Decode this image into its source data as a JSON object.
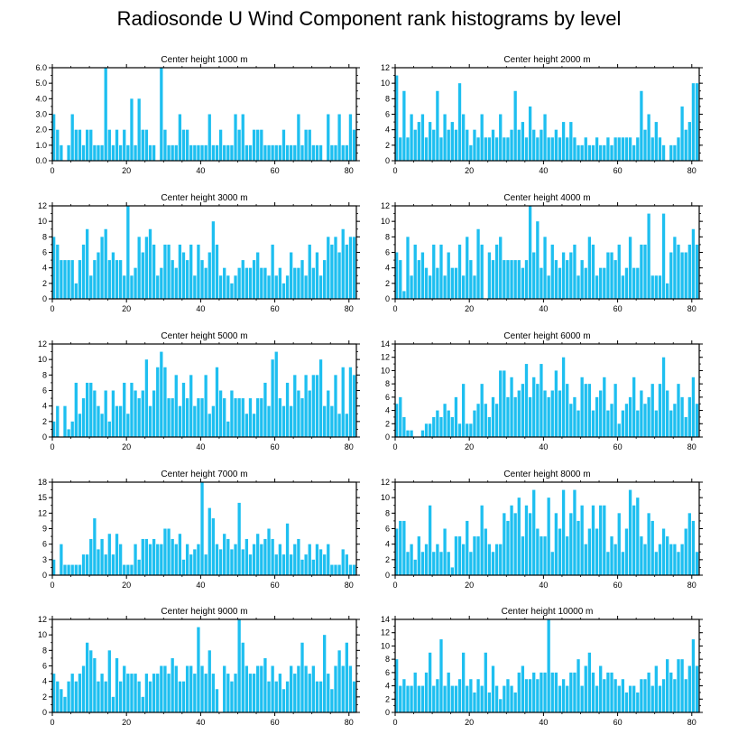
{
  "title": "Radiosonde U Wind Component rank histograms by level",
  "bar_color": "#1ebff0",
  "chart_data": [
    {
      "type": "bar",
      "title": "Center height 1000 m",
      "xlim": [
        0,
        82
      ],
      "ylim": [
        0,
        6
      ],
      "yticks": [
        0,
        1,
        2,
        3,
        4,
        5,
        6
      ],
      "ytick_labels": [
        "0.0",
        "1.0",
        "2.0",
        "3.0",
        "4.0",
        "5.0",
        "6.0"
      ],
      "xticks": [
        0,
        20,
        40,
        60,
        80
      ],
      "x_start": 0,
      "values": [
        3,
        2,
        1,
        0,
        1,
        3,
        2,
        2,
        1,
        2,
        2,
        1,
        1,
        1,
        6,
        2,
        1,
        2,
        1,
        2,
        1,
        4,
        1,
        4,
        2,
        2,
        1,
        1,
        0,
        6,
        2,
        1,
        1,
        1,
        3,
        2,
        2,
        1,
        1,
        1,
        1,
        1,
        3,
        1,
        1,
        2,
        1,
        1,
        1,
        3,
        2,
        3,
        1,
        1,
        2,
        2,
        2,
        1,
        1,
        1,
        1,
        1,
        2,
        1,
        1,
        1,
        3,
        1,
        2,
        2,
        1,
        1,
        1,
        0,
        3,
        1,
        1,
        3,
        1,
        1,
        3,
        2
      ]
    },
    {
      "type": "bar",
      "title": "Center height 2000 m",
      "xlim": [
        0,
        82
      ],
      "ylim": [
        0,
        12
      ],
      "yticks": [
        0,
        2,
        4,
        6,
        8,
        10,
        12
      ],
      "ytick_labels": [
        "0",
        "2",
        "4",
        "6",
        "8",
        "10",
        "12"
      ],
      "xticks": [
        0,
        20,
        40,
        60,
        80
      ],
      "x_start": 0,
      "values": [
        11,
        3,
        9,
        3,
        6,
        4,
        5,
        6,
        3,
        5,
        4,
        9,
        3,
        6,
        4,
        5,
        4,
        10,
        6,
        4,
        2,
        4,
        3,
        6,
        3,
        3,
        4,
        3,
        6,
        3,
        3,
        4,
        9,
        4,
        5,
        3,
        7,
        4,
        3,
        4,
        6,
        3,
        3,
        4,
        3,
        5,
        3,
        5,
        3,
        2,
        2,
        3,
        2,
        2,
        3,
        2,
        2,
        3,
        2,
        3,
        3,
        3,
        3,
        3,
        2,
        3,
        9,
        4,
        6,
        3,
        5,
        3,
        2,
        0,
        2,
        2,
        3,
        7,
        4,
        5,
        10,
        10
      ]
    },
    {
      "type": "bar",
      "title": "Center height 3000 m",
      "xlim": [
        0,
        82
      ],
      "ylim": [
        0,
        12
      ],
      "yticks": [
        0,
        2,
        4,
        6,
        8,
        10,
        12
      ],
      "ytick_labels": [
        "0",
        "2",
        "4",
        "6",
        "8",
        "10",
        "12"
      ],
      "xticks": [
        0,
        20,
        40,
        60,
        80
      ],
      "x_start": 0,
      "values": [
        8,
        7,
        5,
        5,
        5,
        5,
        2,
        5,
        7,
        9,
        3,
        5,
        6,
        8,
        9,
        5,
        6,
        5,
        5,
        3,
        12,
        3,
        4,
        8,
        6,
        8,
        9,
        7,
        3,
        4,
        7,
        7,
        5,
        4,
        7,
        6,
        5,
        7,
        3,
        7,
        5,
        4,
        6,
        10,
        7,
        3,
        4,
        3,
        2,
        3,
        4,
        5,
        4,
        4,
        5,
        6,
        4,
        4,
        3,
        7,
        3,
        4,
        2,
        3,
        6,
        4,
        4,
        5,
        3,
        7,
        4,
        6,
        3,
        5,
        8,
        7,
        8,
        6,
        9,
        7,
        8,
        8
      ]
    },
    {
      "type": "bar",
      "title": "Center height 4000 m",
      "xlim": [
        0,
        82
      ],
      "ylim": [
        0,
        12
      ],
      "yticks": [
        0,
        2,
        4,
        6,
        8,
        10,
        12
      ],
      "ytick_labels": [
        "0",
        "2",
        "4",
        "6",
        "8",
        "10",
        "12"
      ],
      "xticks": [
        0,
        20,
        40,
        60,
        80
      ],
      "x_start": 0,
      "values": [
        6,
        5,
        1,
        8,
        3,
        7,
        5,
        6,
        4,
        3,
        7,
        4,
        7,
        3,
        6,
        4,
        4,
        7,
        3,
        8,
        5,
        3,
        9,
        7,
        0,
        6,
        5,
        7,
        8,
        5,
        5,
        5,
        5,
        5,
        4,
        5,
        12,
        6,
        10,
        4,
        8,
        3,
        7,
        5,
        4,
        6,
        5,
        6,
        7,
        3,
        5,
        4,
        8,
        7,
        3,
        4,
        4,
        6,
        6,
        5,
        7,
        3,
        4,
        8,
        4,
        4,
        7,
        7,
        11,
        3,
        3,
        3,
        11,
        2,
        6,
        8,
        7,
        6,
        6,
        7,
        9,
        7
      ]
    },
    {
      "type": "bar",
      "title": "Center height 5000 m",
      "xlim": [
        0,
        82
      ],
      "ylim": [
        0,
        12
      ],
      "yticks": [
        0,
        2,
        4,
        6,
        8,
        10,
        12
      ],
      "ytick_labels": [
        "0",
        "2",
        "4",
        "6",
        "8",
        "10",
        "12"
      ],
      "xticks": [
        0,
        20,
        40,
        60,
        80
      ],
      "x_start": 0,
      "values": [
        2,
        4,
        0,
        4,
        1,
        2,
        7,
        3,
        5,
        7,
        7,
        6,
        4,
        3,
        6,
        2,
        6,
        4,
        4,
        7,
        3,
        7,
        6,
        5,
        6,
        10,
        4,
        6,
        9,
        11,
        9,
        5,
        5,
        8,
        4,
        7,
        5,
        8,
        4,
        5,
        5,
        8,
        3,
        4,
        9,
        6,
        5,
        2,
        6,
        5,
        5,
        5,
        3,
        5,
        3,
        5,
        5,
        7,
        4,
        10,
        11,
        5,
        4,
        7,
        4,
        8,
        6,
        5,
        8,
        6,
        8,
        8,
        10,
        4,
        6,
        4,
        8,
        3,
        9,
        3,
        9,
        8
      ]
    },
    {
      "type": "bar",
      "title": "Center height 6000 m",
      "xlim": [
        0,
        82
      ],
      "ylim": [
        0,
        14
      ],
      "yticks": [
        0,
        2,
        4,
        6,
        8,
        10,
        12,
        14
      ],
      "ytick_labels": [
        "0",
        "2",
        "4",
        "6",
        "8",
        "10",
        "12",
        "14"
      ],
      "xticks": [
        0,
        20,
        40,
        60,
        80
      ],
      "x_start": 0,
      "values": [
        5,
        6,
        3,
        1,
        1,
        0,
        0,
        1,
        2,
        2,
        3,
        4,
        3,
        5,
        4,
        3,
        6,
        2,
        8,
        2,
        2,
        4,
        5,
        8,
        5,
        3,
        6,
        5,
        10,
        10,
        6,
        9,
        6,
        7,
        8,
        11,
        6,
        9,
        8,
        11,
        7,
        6,
        7,
        10,
        7,
        12,
        8,
        5,
        6,
        4,
        9,
        8,
        8,
        4,
        6,
        7,
        9,
        4,
        5,
        8,
        2,
        4,
        5,
        6,
        9,
        4,
        7,
        5,
        6,
        8,
        4,
        8,
        12,
        7,
        4,
        5,
        8,
        6,
        3,
        6,
        9,
        5
      ]
    },
    {
      "type": "bar",
      "title": "Center height 7000 m",
      "xlim": [
        0,
        82
      ],
      "ylim": [
        0,
        18
      ],
      "yticks": [
        0,
        3,
        6,
        9,
        12,
        15,
        18
      ],
      "ytick_labels": [
        "0",
        "3",
        "6",
        "9",
        "12",
        "15",
        "18"
      ],
      "xticks": [
        0,
        20,
        40,
        60,
        80
      ],
      "x_start": 0,
      "values": [
        3,
        0,
        6,
        2,
        2,
        2,
        2,
        2,
        4,
        4,
        7,
        11,
        5,
        7,
        4,
        8,
        4,
        8,
        6,
        2,
        2,
        2,
        6,
        3,
        7,
        7,
        6,
        7,
        6,
        6,
        9,
        9,
        7,
        6,
        8,
        3,
        6,
        4,
        5,
        6,
        18,
        4,
        13,
        11,
        6,
        5,
        8,
        7,
        5,
        6,
        14,
        5,
        7,
        4,
        6,
        8,
        6,
        7,
        9,
        7,
        4,
        6,
        4,
        10,
        4,
        6,
        7,
        3,
        4,
        6,
        3,
        6,
        5,
        4,
        6,
        2,
        2,
        2,
        5,
        4,
        2,
        2
      ]
    },
    {
      "type": "bar",
      "title": "Center height 8000 m",
      "xlim": [
        0,
        82
      ],
      "ylim": [
        0,
        12
      ],
      "yticks": [
        0,
        2,
        4,
        6,
        8,
        10,
        12
      ],
      "ytick_labels": [
        "0",
        "2",
        "4",
        "6",
        "8",
        "10",
        "12"
      ],
      "xticks": [
        0,
        20,
        40,
        60,
        80
      ],
      "x_start": 0,
      "values": [
        6,
        7,
        7,
        3,
        4,
        2,
        5,
        3,
        4,
        9,
        3,
        4,
        3,
        6,
        3,
        1,
        5,
        5,
        4,
        7,
        3,
        5,
        5,
        9,
        6,
        4,
        3,
        4,
        4,
        8,
        7,
        9,
        8,
        10,
        5,
        9,
        8,
        11,
        6,
        5,
        5,
        10,
        3,
        8,
        6,
        11,
        5,
        8,
        11,
        7,
        9,
        4,
        6,
        9,
        6,
        9,
        9,
        3,
        5,
        4,
        8,
        3,
        6,
        11,
        9,
        10,
        5,
        4,
        8,
        7,
        3,
        4,
        6,
        5,
        4,
        4,
        3,
        4,
        6,
        8,
        7,
        3
      ]
    },
    {
      "type": "bar",
      "title": "Center height 9000 m",
      "xlim": [
        0,
        82
      ],
      "ylim": [
        0,
        12
      ],
      "yticks": [
        0,
        2,
        4,
        6,
        8,
        10,
        12
      ],
      "ytick_labels": [
        "0",
        "2",
        "4",
        "6",
        "8",
        "10",
        "12"
      ],
      "xticks": [
        0,
        20,
        40,
        60,
        80
      ],
      "x_start": 0,
      "values": [
        5,
        4,
        3,
        2,
        4,
        5,
        4,
        5,
        6,
        9,
        8,
        7,
        4,
        5,
        4,
        8,
        2,
        7,
        4,
        6,
        5,
        5,
        5,
        4,
        2,
        5,
        4,
        5,
        5,
        6,
        6,
        5,
        7,
        6,
        4,
        4,
        6,
        6,
        5,
        11,
        6,
        5,
        8,
        5,
        3,
        0,
        6,
        5,
        4,
        5,
        12,
        9,
        6,
        5,
        5,
        6,
        6,
        7,
        4,
        6,
        4,
        5,
        3,
        4,
        6,
        5,
        6,
        9,
        6,
        5,
        6,
        4,
        4,
        10,
        5,
        3,
        6,
        8,
        6,
        9,
        6,
        4
      ]
    },
    {
      "type": "bar",
      "title": "Center height 10000 m",
      "xlim": [
        0,
        82
      ],
      "ylim": [
        0,
        14
      ],
      "yticks": [
        0,
        2,
        4,
        6,
        8,
        10,
        12,
        14
      ],
      "ytick_labels": [
        "0",
        "2",
        "4",
        "6",
        "8",
        "10",
        "12",
        "14"
      ],
      "xticks": [
        0,
        20,
        40,
        60,
        80
      ],
      "x_start": 0,
      "values": [
        8,
        4,
        5,
        4,
        4,
        6,
        4,
        4,
        6,
        9,
        4,
        5,
        11,
        4,
        6,
        4,
        4,
        5,
        9,
        4,
        5,
        3,
        5,
        4,
        9,
        3,
        7,
        4,
        2,
        4,
        5,
        4,
        3,
        6,
        7,
        5,
        5,
        6,
        5,
        6,
        6,
        14,
        6,
        6,
        4,
        5,
        4,
        6,
        6,
        8,
        4,
        7,
        9,
        6,
        4,
        7,
        5,
        6,
        6,
        5,
        4,
        5,
        3,
        4,
        4,
        3,
        5,
        5,
        6,
        4,
        7,
        4,
        5,
        8,
        6,
        5,
        8,
        8,
        5,
        7,
        11,
        7
      ]
    }
  ]
}
